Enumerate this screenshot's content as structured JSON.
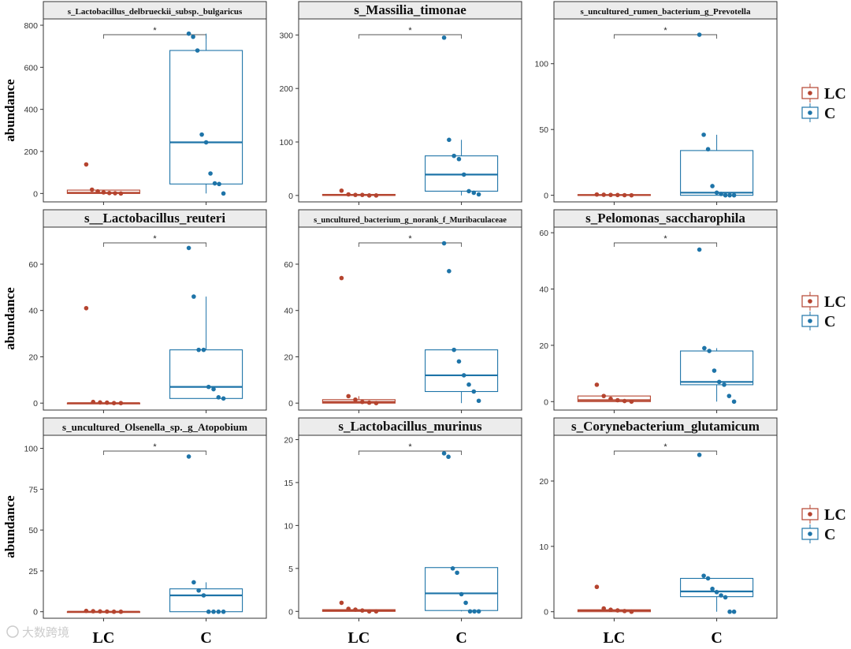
{
  "colors": {
    "LC": "#b5442f",
    "C": "#1e74a8"
  },
  "legend": {
    "items": [
      "LC",
      "C"
    ]
  },
  "watermark": "大数跨境",
  "chart_data": [
    {
      "type": "boxplot",
      "title": "s_Lactobacillus_delbrueckii_subsp._bulgaricus",
      "xlabel": "",
      "ylabel": "abundance",
      "categories": [
        "LC",
        "C"
      ],
      "ylim": [
        -40,
        830
      ],
      "yticks": [
        0,
        200,
        400,
        600,
        800
      ],
      "significance": "*",
      "groups": [
        {
          "name": "LC",
          "box": {
            "q1": 0,
            "median": 3,
            "q3": 16,
            "min": 0,
            "max": 16
          },
          "points": [
            138,
            18,
            10,
            5,
            2,
            1,
            0
          ]
        },
        {
          "name": "C",
          "box": {
            "q1": 45,
            "median": 243,
            "q3": 680,
            "min": 0,
            "max": 760
          },
          "points": [
            760,
            745,
            680,
            280,
            243,
            95,
            48,
            45,
            0
          ]
        }
      ]
    },
    {
      "type": "boxplot",
      "title": "s_Massilia_timonae",
      "xlabel": "",
      "ylabel": "",
      "categories": [
        "LC",
        "C"
      ],
      "ylim": [
        -12,
        330
      ],
      "yticks": [
        0,
        100,
        200,
        300
      ],
      "significance": "*",
      "groups": [
        {
          "name": "LC",
          "box": {
            "q1": 0,
            "median": 1,
            "q3": 2,
            "min": 0,
            "max": 2
          },
          "points": [
            9,
            2,
            1,
            1,
            0,
            0
          ]
        },
        {
          "name": "C",
          "box": {
            "q1": 8,
            "median": 39,
            "q3": 74,
            "min": 0,
            "max": 104
          },
          "points": [
            295,
            104,
            74,
            68,
            39,
            8,
            5,
            2
          ]
        }
      ]
    },
    {
      "type": "boxplot",
      "title": "s_uncultured_rumen_bacterium_g_Prevotella",
      "xlabel": "",
      "ylabel": "",
      "categories": [
        "LC",
        "C"
      ],
      "ylim": [
        -5,
        134
      ],
      "yticks": [
        0,
        50,
        100
      ],
      "significance": "*",
      "groups": [
        {
          "name": "LC",
          "box": {
            "q1": 0,
            "median": 0.2,
            "q3": 0.5,
            "min": 0,
            "max": 0.5
          },
          "points": [
            0.6,
            0.4,
            0.3,
            0.2,
            0.1,
            0
          ]
        },
        {
          "name": "C",
          "box": {
            "q1": 0,
            "median": 2,
            "q3": 34,
            "min": 0,
            "max": 46
          },
          "points": [
            122,
            46,
            35,
            7,
            2,
            1,
            0,
            0,
            0
          ]
        }
      ]
    },
    {
      "type": "boxplot",
      "title": "s__Lactobacillus_reuteri",
      "xlabel": "",
      "ylabel": "abundance",
      "categories": [
        "LC",
        "C"
      ],
      "ylim": [
        -3,
        76
      ],
      "yticks": [
        0,
        20,
        40,
        60
      ],
      "significance": "*",
      "groups": [
        {
          "name": "LC",
          "box": {
            "q1": 0,
            "median": 0,
            "q3": 0,
            "min": 0,
            "max": 0
          },
          "points": [
            41,
            0.5,
            0.3,
            0.2,
            0,
            0
          ]
        },
        {
          "name": "C",
          "box": {
            "q1": 2,
            "median": 7,
            "q3": 23,
            "min": 2,
            "max": 46
          },
          "points": [
            67,
            46,
            23,
            23,
            7,
            6,
            2.5,
            2
          ]
        }
      ]
    },
    {
      "type": "boxplot",
      "title": "s_uncultured_bacterium_g_norank_f_Muribaculaceae",
      "xlabel": "",
      "ylabel": "",
      "categories": [
        "LC",
        "C"
      ],
      "ylim": [
        -3,
        76
      ],
      "yticks": [
        0,
        20,
        40,
        60
      ],
      "significance": "*",
      "groups": [
        {
          "name": "LC",
          "box": {
            "q1": 0,
            "median": 0.5,
            "q3": 1.5,
            "min": 0,
            "max": 3
          },
          "points": [
            54,
            3,
            1.5,
            0.5,
            0.2,
            0
          ]
        },
        {
          "name": "C",
          "box": {
            "q1": 5,
            "median": 12,
            "q3": 23,
            "min": 0,
            "max": 23
          },
          "points": [
            69,
            57,
            23,
            18,
            12,
            8,
            5,
            1
          ]
        }
      ]
    },
    {
      "type": "boxplot",
      "title": "s_Pelomonas_saccharophila",
      "xlabel": "",
      "ylabel": "",
      "categories": [
        "LC",
        "C"
      ],
      "ylim": [
        -3,
        62
      ],
      "yticks": [
        0,
        20,
        40,
        60
      ],
      "significance": "*",
      "groups": [
        {
          "name": "LC",
          "box": {
            "q1": 0,
            "median": 0.5,
            "q3": 2,
            "min": 0,
            "max": 2
          },
          "points": [
            6,
            2,
            1,
            0.5,
            0.2,
            0
          ]
        },
        {
          "name": "C",
          "box": {
            "q1": 6,
            "median": 7,
            "q3": 18,
            "min": 0,
            "max": 19
          },
          "points": [
            54,
            19,
            18,
            11,
            7,
            6,
            2,
            0
          ]
        }
      ]
    },
    {
      "type": "boxplot",
      "title": "s_uncultured_Olsenella_sp._g_Atopobium",
      "xlabel": "",
      "ylabel": "abundance",
      "categories": [
        "LC",
        "C"
      ],
      "ylim": [
        -4,
        108
      ],
      "yticks": [
        0,
        25,
        50,
        75,
        100
      ],
      "significance": "*",
      "groups": [
        {
          "name": "LC",
          "box": {
            "q1": 0,
            "median": 0,
            "q3": 0,
            "min": 0,
            "max": 0
          },
          "points": [
            0.5,
            0.3,
            0.2,
            0.1,
            0,
            0
          ]
        },
        {
          "name": "C",
          "box": {
            "q1": 0,
            "median": 10,
            "q3": 14,
            "min": 0,
            "max": 18
          },
          "points": [
            95,
            18,
            13,
            10,
            0,
            0,
            0,
            0
          ]
        }
      ]
    },
    {
      "type": "boxplot",
      "title": "s_Lactobacillus_murinus",
      "xlabel": "",
      "ylabel": "",
      "categories": [
        "LC",
        "C"
      ],
      "ylim": [
        -0.8,
        20.5
      ],
      "yticks": [
        0,
        5,
        10,
        15,
        20
      ],
      "significance": "*",
      "groups": [
        {
          "name": "LC",
          "box": {
            "q1": 0,
            "median": 0.1,
            "q3": 0.2,
            "min": 0,
            "max": 0.2
          },
          "points": [
            1,
            0.3,
            0.2,
            0.1,
            0,
            0
          ]
        },
        {
          "name": "C",
          "box": {
            "q1": 0.1,
            "median": 2.1,
            "q3": 5.1,
            "min": 0,
            "max": 5.1
          },
          "points": [
            18.4,
            18,
            5,
            4.5,
            2,
            1,
            0,
            0,
            0
          ]
        }
      ]
    },
    {
      "type": "boxplot",
      "title": "s_Corynebacterium_glutamicum",
      "xlabel": "",
      "ylabel": "",
      "categories": [
        "LC",
        "C"
      ],
      "ylim": [
        -1,
        27
      ],
      "yticks": [
        0,
        10,
        20
      ],
      "significance": "*",
      "groups": [
        {
          "name": "LC",
          "box": {
            "q1": 0,
            "median": 0.2,
            "q3": 0.3,
            "min": 0,
            "max": 0.3
          },
          "points": [
            3.8,
            0.5,
            0.3,
            0.2,
            0.1,
            0
          ]
        },
        {
          "name": "C",
          "box": {
            "q1": 2.3,
            "median": 3.1,
            "q3": 5.1,
            "min": 0,
            "max": 5.1
          },
          "points": [
            24,
            5.5,
            5.1,
            3.5,
            3,
            2.5,
            2.2,
            0,
            0
          ]
        }
      ]
    }
  ],
  "x_axis": {
    "tick_labels": [
      "LC",
      "C"
    ]
  }
}
